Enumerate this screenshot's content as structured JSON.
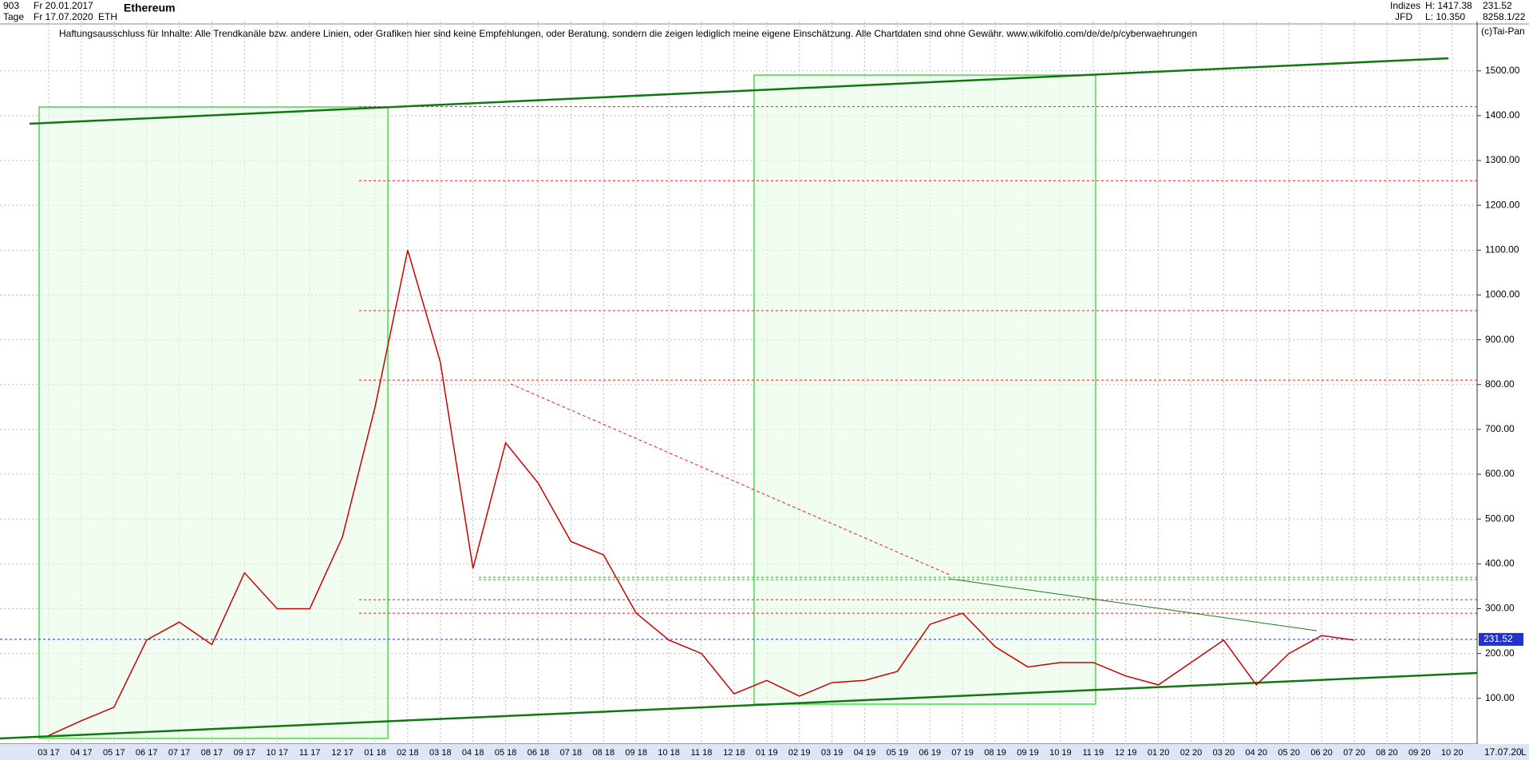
{
  "header": {
    "left": [
      [
        "903",
        "Fr 20.01.2017"
      ],
      [
        "Tage",
        "Fr 17.07.2020"
      ]
    ],
    "symbol": "ETH",
    "name": "Ethereum",
    "right": [
      [
        "Indizes",
        "H: 1417.38",
        "231.52"
      ],
      [
        "JFD",
        "L: 10.350",
        "8258.1/22"
      ]
    ],
    "copyright": "(c)Tai-Pan",
    "disclaimer": "Haftungsausschluss für Inhalte: Alle Trendkanäle bzw. andere Linien, oder Grafiken hier sind keine Empfehlungen, oder Beratung, sondern die zeigen lediglich meine eigene Einschätzung. Alle Chartdaten sind ohne Gewähr.  www.wikifolio.com/de/de/p/cyberwaehrungen",
    "end_date": "17.07.20",
    "axis_mode": "L"
  },
  "chart_data": {
    "type": "line",
    "title": "Ethereum",
    "categories": [
      "03 17",
      "04 17",
      "05 17",
      "06 17",
      "07 17",
      "08 17",
      "09 17",
      "10 17",
      "11 17",
      "12 17",
      "01 18",
      "02 18",
      "03 18",
      "04 18",
      "05 18",
      "06 18",
      "07 18",
      "08 18",
      "09 18",
      "10 18",
      "11 18",
      "12 18",
      "01 19",
      "02 19",
      "03 19",
      "04 19",
      "05 19",
      "06 19",
      "07 19",
      "08 19",
      "09 19",
      "10 19",
      "11 19",
      "12 19",
      "01 20",
      "02 20",
      "03 20",
      "04 20",
      "05 20",
      "06 20",
      "07 20",
      "08 20",
      "09 20",
      "10 20"
    ],
    "series": [
      {
        "name": "ETH",
        "color": "#cc0000",
        "values": [
          17,
          50,
          80,
          230,
          270,
          220,
          380,
          300,
          300,
          460,
          750,
          1100,
          850,
          390,
          670,
          580,
          450,
          420,
          290,
          230,
          200,
          110,
          140,
          105,
          135,
          140,
          160,
          265,
          290,
          215,
          170,
          180,
          180,
          150,
          130,
          180,
          230,
          130,
          200,
          240,
          230,
          null,
          null,
          null
        ]
      }
    ],
    "ylim": [
      -2,
      1610
    ],
    "yticks": [
      {
        "value": 100,
        "label": "100.00"
      },
      {
        "value": 200,
        "label": "200.00"
      },
      {
        "value": 300,
        "label": "300.00"
      },
      {
        "value": 400,
        "label": "400.00"
      },
      {
        "value": 500,
        "label": "500.00"
      },
      {
        "value": 600,
        "label": "600.00"
      },
      {
        "value": 700,
        "label": "700.00"
      },
      {
        "value": 800,
        "label": "800.00"
      },
      {
        "value": 900,
        "label": "900.00"
      },
      {
        "value": 1000,
        "label": "1000.00"
      },
      {
        "value": 1100,
        "label": "1100.00"
      },
      {
        "value": 1200,
        "label": "1200.00"
      },
      {
        "value": 1300,
        "label": "1300.00"
      },
      {
        "value": 1400,
        "label": "1400.00"
      },
      {
        "value": 1500,
        "label": "1500.00"
      }
    ],
    "grid": true,
    "last_value": 231.52,
    "resistance_levels": [
      1420,
      1255,
      965,
      810,
      290,
      320
    ],
    "support_levels": [
      370,
      365
    ]
  }
}
